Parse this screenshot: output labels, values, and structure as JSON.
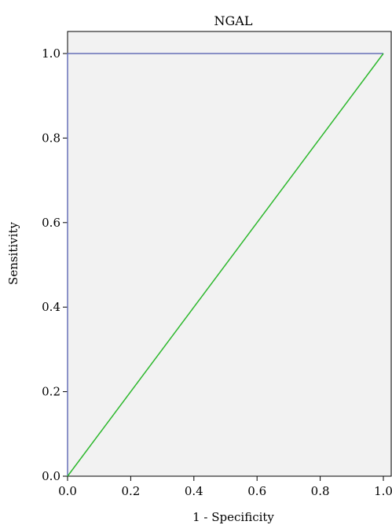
{
  "chart_data": {
    "type": "line",
    "title": "NGAL",
    "xlabel": "1 - Specificity",
    "ylabel": "Sensitivity",
    "xlim": [
      0,
      1
    ],
    "ylim": [
      0,
      1
    ],
    "x_ticks": [
      "0.0",
      "0.2",
      "0.4",
      "0.6",
      "0.8",
      "1.0"
    ],
    "y_ticks": [
      "0.0",
      "0.2",
      "0.4",
      "0.6",
      "0.8",
      "1.0"
    ],
    "grid": false,
    "series": [
      {
        "color": "#6670b8",
        "x": [
          0,
          0,
          1
        ],
        "y": [
          0,
          1,
          1
        ]
      },
      {
        "color": "#2db82d",
        "x": [
          0,
          1
        ],
        "y": [
          0,
          1
        ]
      }
    ],
    "plot_background": "#f2f2f2"
  }
}
